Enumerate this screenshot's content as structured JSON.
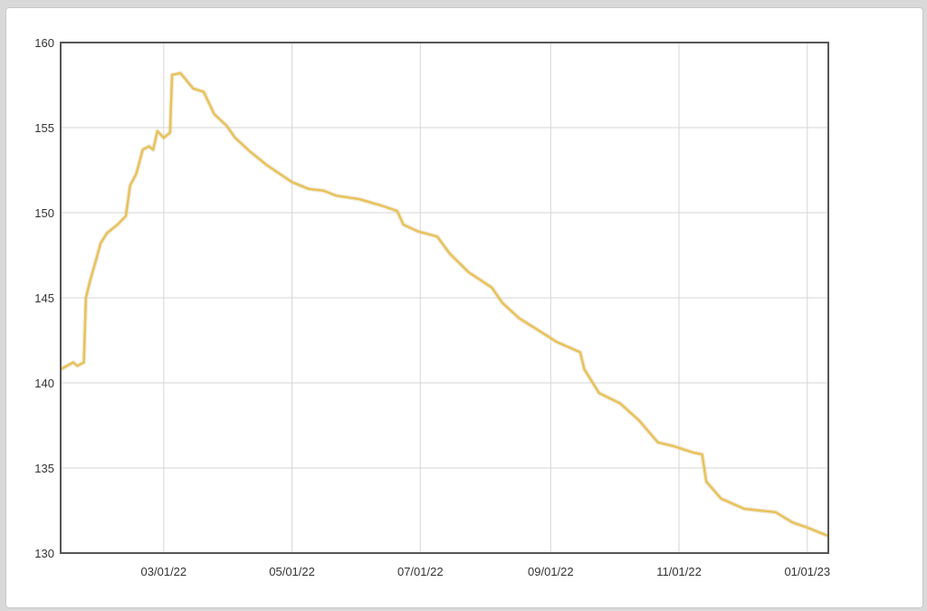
{
  "chart_data": {
    "type": "line",
    "title": "",
    "xlabel": "",
    "ylabel": "",
    "ylim": [
      130,
      160
    ],
    "xlim": [
      "2022-01-11",
      "2023-01-11"
    ],
    "grid": true,
    "line_color": "#e8c25a",
    "yticks": [
      "130",
      "135",
      "140",
      "145",
      "150",
      "155",
      "160"
    ],
    "xticks": [
      {
        "date": "2022-03-01",
        "label": "03/01/22"
      },
      {
        "date": "2022-05-01",
        "label": "05/01/22"
      },
      {
        "date": "2022-07-01",
        "label": "07/01/22"
      },
      {
        "date": "2022-09-01",
        "label": "09/01/22"
      },
      {
        "date": "2022-11-01",
        "label": "11/01/22"
      },
      {
        "date": "2023-01-01",
        "label": "01/01/23"
      }
    ],
    "series": [
      {
        "points": [
          [
            "2022-01-11",
            140.8
          ],
          [
            "2022-01-17",
            141.2
          ],
          [
            "2022-01-19",
            141.0
          ],
          [
            "2022-01-22",
            141.2
          ],
          [
            "2022-01-23",
            145.0
          ],
          [
            "2022-01-25",
            146.0
          ],
          [
            "2022-01-28",
            147.3
          ],
          [
            "2022-01-30",
            148.2
          ],
          [
            "2022-02-02",
            148.8
          ],
          [
            "2022-02-07",
            149.3
          ],
          [
            "2022-02-11",
            149.8
          ],
          [
            "2022-02-13",
            151.6
          ],
          [
            "2022-02-16",
            152.3
          ],
          [
            "2022-02-19",
            153.7
          ],
          [
            "2022-02-22",
            153.9
          ],
          [
            "2022-02-24",
            153.7
          ],
          [
            "2022-02-26",
            154.8
          ],
          [
            "2022-03-01",
            154.4
          ],
          [
            "2022-03-04",
            154.7
          ],
          [
            "2022-03-05",
            158.1
          ],
          [
            "2022-03-09",
            158.2
          ],
          [
            "2022-03-15",
            157.3
          ],
          [
            "2022-03-20",
            157.1
          ],
          [
            "2022-03-25",
            155.8
          ],
          [
            "2022-03-31",
            155.1
          ],
          [
            "2022-04-04",
            154.4
          ],
          [
            "2022-04-11",
            153.6
          ],
          [
            "2022-04-19",
            152.8
          ],
          [
            "2022-05-01",
            151.8
          ],
          [
            "2022-05-09",
            151.4
          ],
          [
            "2022-05-16",
            151.3
          ],
          [
            "2022-05-22",
            151.0
          ],
          [
            "2022-06-02",
            150.8
          ],
          [
            "2022-06-13",
            150.4
          ],
          [
            "2022-06-20",
            150.1
          ],
          [
            "2022-06-23",
            149.3
          ],
          [
            "2022-06-30",
            148.9
          ],
          [
            "2022-07-09",
            148.6
          ],
          [
            "2022-07-15",
            147.6
          ],
          [
            "2022-07-24",
            146.5
          ],
          [
            "2022-08-04",
            145.6
          ],
          [
            "2022-08-09",
            144.7
          ],
          [
            "2022-08-17",
            143.8
          ],
          [
            "2022-08-26",
            143.1
          ],
          [
            "2022-09-04",
            142.4
          ],
          [
            "2022-09-15",
            141.8
          ],
          [
            "2022-09-17",
            140.8
          ],
          [
            "2022-09-24",
            139.4
          ],
          [
            "2022-10-04",
            138.8
          ],
          [
            "2022-10-13",
            137.8
          ],
          [
            "2022-10-22",
            136.5
          ],
          [
            "2022-10-29",
            136.3
          ],
          [
            "2022-11-08",
            135.9
          ],
          [
            "2022-11-12",
            135.8
          ],
          [
            "2022-11-14",
            134.2
          ],
          [
            "2022-11-21",
            133.2
          ],
          [
            "2022-12-02",
            132.6
          ],
          [
            "2022-12-17",
            132.4
          ],
          [
            "2022-12-25",
            131.8
          ],
          [
            "2023-01-01",
            131.5
          ],
          [
            "2023-01-11",
            131.0
          ]
        ]
      }
    ]
  }
}
